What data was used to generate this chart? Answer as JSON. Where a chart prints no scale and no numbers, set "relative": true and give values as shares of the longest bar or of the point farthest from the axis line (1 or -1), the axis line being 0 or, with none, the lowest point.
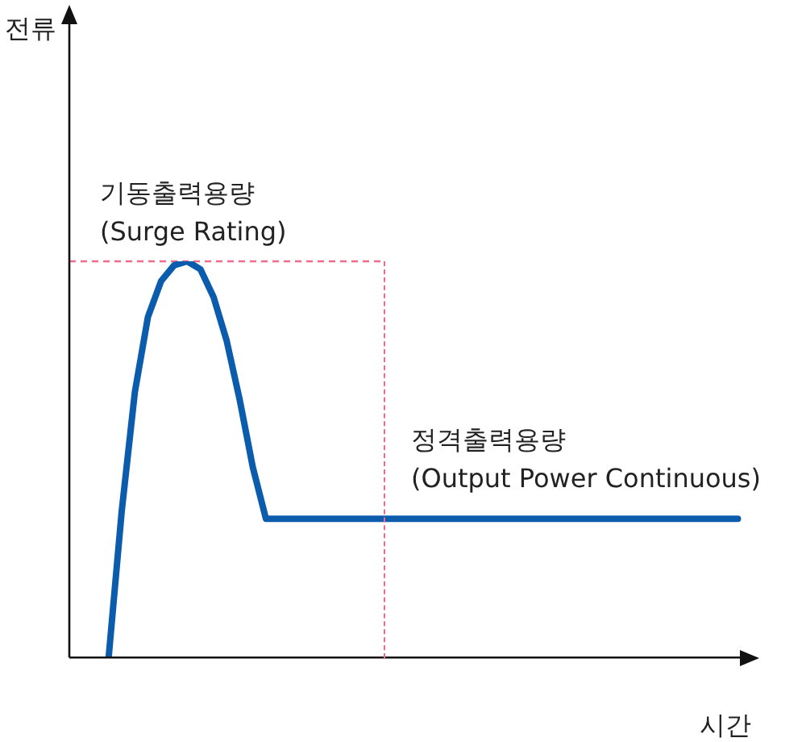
{
  "chart_data": {
    "type": "line",
    "relative": true,
    "xlabel": "시간",
    "categories": [
      null,
      null,
      null,
      null,
      null,
      null,
      null,
      null,
      null,
      null,
      null,
      null,
      null,
      null,
      null,
      null,
      null,
      null,
      null,
      null,
      null,
      null,
      null,
      null,
      null,
      null,
      null,
      null,
      null,
      null,
      null,
      null,
      null,
      null,
      null,
      null,
      null,
      null,
      null,
      null,
      null,
      null,
      null,
      null,
      null,
      null,
      null,
      null,
      null,
      null,
      null,
      null,
      null,
      null
    ],
    "series": [
      {
        "color": "#0b5cad",
        "values": [
          null,
          null,
          null,
          0,
          0.37,
          0.67,
          0.86,
          0.95,
          0.99,
          1,
          0.98,
          0.91,
          0.8,
          0.65,
          0.48,
          0.35,
          0.35,
          0.35,
          0.35,
          0.35,
          0.35,
          0.35,
          0.35,
          0.35,
          0.35,
          0.35,
          0.35,
          0.35,
          0.35,
          0.35,
          0.35,
          0.35,
          0.35,
          0.35,
          0.35,
          0.35,
          0.35,
          0.35,
          0.35,
          0.35,
          0.35,
          0.35,
          0.35,
          0.35,
          0.35,
          0.35,
          0.35,
          0.35,
          0.35,
          0.35,
          0.35,
          0.35,
          null,
          null
        ]
      }
    ],
    "ref_lines": [
      {
        "axis": "y",
        "value": 1,
        "color": "#f06a8a",
        "line_style": "dashed"
      }
    ],
    "annotations": [
      "전류",
      "기동출력용량\n(Surge Rating)",
      "정격출력용량\n(Output Power Continuous)"
    ],
    "legend": false,
    "grid": false,
    "marker": "none",
    "line_style": "solid"
  }
}
